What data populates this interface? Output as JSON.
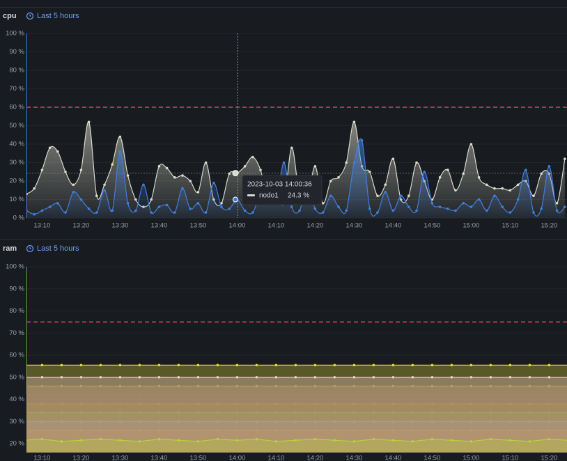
{
  "chart_data": [
    {
      "type": "line",
      "title": "cpu",
      "subtitle": "Last 5 hours",
      "categories": [
        "13:06",
        "13:08",
        "13:10",
        "13:12",
        "13:14",
        "13:16",
        "13:18",
        "13:20",
        "13:22",
        "13:24",
        "13:26",
        "13:28",
        "13:30",
        "13:32",
        "13:34",
        "13:36",
        "13:38",
        "13:40",
        "13:42",
        "13:44",
        "13:46",
        "13:48",
        "13:50",
        "13:52",
        "13:54",
        "13:56",
        "13:58",
        "14:00",
        "14:02",
        "14:04",
        "14:06",
        "14:08",
        "14:10",
        "14:12",
        "14:14",
        "14:16",
        "14:18",
        "14:20",
        "14:22",
        "14:24",
        "14:26",
        "14:28",
        "14:30",
        "14:32",
        "14:34",
        "14:36",
        "14:38",
        "14:40",
        "14:42",
        "14:44",
        "14:46",
        "14:48",
        "14:50",
        "14:52",
        "14:54",
        "14:56",
        "14:58",
        "15:00",
        "15:02",
        "15:04",
        "15:06",
        "15:08",
        "15:10",
        "15:12",
        "15:14",
        "15:16",
        "15:18",
        "15:20",
        "15:22",
        "15:24"
      ],
      "tick_every": 5,
      "tick_first": 2,
      "series": [
        {
          "name": "nodo1",
          "color": "#d9d9cc",
          "values": [
            13,
            16,
            26,
            38,
            36,
            25,
            18,
            26,
            52,
            12,
            18,
            29,
            44,
            23,
            10,
            6,
            10,
            28,
            27,
            22,
            23,
            20,
            14,
            30,
            10,
            8,
            24,
            24.3,
            28,
            33,
            26,
            10,
            14,
            8,
            38,
            12,
            10,
            28,
            8,
            20,
            22,
            30,
            52,
            28,
            25,
            12,
            18,
            32,
            10,
            12,
            30,
            20,
            10,
            22,
            26,
            15,
            24,
            40,
            22,
            18,
            16,
            16,
            15,
            18,
            20,
            12,
            24,
            24,
            8,
            32
          ]
        },
        {
          "color": "#3f7fe0",
          "values": [
            4,
            2,
            4,
            6,
            8,
            3,
            14,
            10,
            5,
            3,
            15,
            4,
            36,
            8,
            4,
            18,
            3,
            6,
            7,
            3,
            16,
            5,
            8,
            3,
            19,
            6,
            5,
            10,
            4,
            3,
            14,
            22,
            8,
            30,
            6,
            4,
            18,
            5,
            3,
            12,
            6,
            4,
            30,
            42,
            5,
            3,
            14,
            4,
            12,
            6,
            4,
            25,
            8,
            6,
            5,
            4,
            8,
            6,
            10,
            4,
            12,
            6,
            3,
            10,
            26,
            3,
            5,
            28,
            4,
            6
          ]
        }
      ],
      "ylim": [
        0,
        100
      ],
      "yticks": [
        {
          "value": 0,
          "label": "0 %"
        },
        {
          "value": 10,
          "label": "10 %"
        },
        {
          "value": 20,
          "label": "20 %"
        },
        {
          "value": 30,
          "label": "30 %"
        },
        {
          "value": 40,
          "label": "40 %"
        },
        {
          "value": 50,
          "label": "50 %"
        },
        {
          "value": 60,
          "label": "60 %"
        },
        {
          "value": 70,
          "label": "70 %"
        },
        {
          "value": 80,
          "label": "80 %"
        },
        {
          "value": 90,
          "label": "90 %"
        },
        {
          "value": 100,
          "label": "100 %"
        }
      ],
      "threshold": 60,
      "threshold_color": "#e0445f",
      "axis_color": "#3f7fe0",
      "tooltip": {
        "time": "2023-10-03 14:00:36",
        "value": 24.3,
        "value_label": "24.3 %"
      }
    },
    {
      "type": "line",
      "title": "ram",
      "subtitle": "Last 5 hours",
      "categories": [
        null,
        "13:10",
        null,
        "13:20",
        null,
        "13:30",
        null,
        "13:40",
        null,
        "13:50",
        null,
        "14:00",
        null,
        "14:10",
        null,
        "14:20",
        null,
        "14:30",
        null,
        "14:40",
        null,
        "14:50",
        null,
        "15:00",
        null,
        "15:10",
        null,
        "15:20",
        null
      ],
      "series": [
        {
          "color": "#8a5a3a",
          "values": [
            46,
            46,
            46,
            46,
            46,
            46,
            46,
            46,
            46,
            46,
            46,
            46,
            46,
            46,
            46,
            46,
            46,
            46,
            46,
            46,
            46,
            46,
            46,
            46,
            46,
            46,
            46,
            46,
            46
          ]
        },
        {
          "color": "#5a2a4a",
          "values": [
            42,
            42,
            42,
            42,
            42,
            42,
            42,
            42,
            42,
            42,
            42,
            42,
            42,
            42,
            42,
            42,
            42,
            42,
            42,
            42,
            42,
            42,
            42,
            42,
            42,
            42,
            42,
            42,
            42
          ]
        },
        {
          "color": "#6a4a1a",
          "values": [
            38,
            38,
            38,
            38,
            38,
            38,
            38,
            38,
            38,
            38,
            38,
            38,
            38,
            38,
            38,
            38,
            38,
            38,
            38,
            38,
            38,
            38,
            38,
            38,
            38,
            38,
            38,
            38,
            38
          ]
        },
        {
          "color": "#4a6a3a",
          "values": [
            34,
            34,
            34,
            34,
            34,
            34,
            34,
            34,
            34,
            34,
            34,
            34,
            34,
            34,
            34,
            34,
            34,
            34,
            34,
            34,
            34,
            34,
            34,
            34,
            34,
            34,
            34,
            34,
            34
          ]
        },
        {
          "color": "#6a5a9a",
          "values": [
            30,
            30,
            30,
            30,
            30,
            30,
            30,
            30,
            30,
            30,
            30,
            30,
            30,
            30,
            30,
            30,
            30,
            30,
            30,
            30,
            30,
            30,
            30,
            30,
            30,
            30,
            30,
            30,
            30
          ]
        },
        {
          "color": "#9a4a3a",
          "values": [
            26,
            26,
            26,
            26,
            26,
            26,
            26,
            26,
            26,
            26,
            26,
            26,
            26,
            26,
            26,
            26,
            26,
            26,
            26,
            26,
            26,
            26,
            26,
            26,
            26,
            26,
            26,
            26,
            26
          ]
        },
        {
          "color": "#e3dd3c",
          "values": [
            55.5,
            55.5,
            55.5,
            55.5,
            55.5,
            55.5,
            55.5,
            55.5,
            55.5,
            55.5,
            55.5,
            55.5,
            55.5,
            55.5,
            55.5,
            55.5,
            55.5,
            55.5,
            55.5,
            55.5,
            55.5,
            55.5,
            55.5,
            55.5,
            55.5,
            55.5,
            55.5,
            55.5,
            55.5
          ]
        },
        {
          "color": "#f4c9cc",
          "values": [
            50,
            50,
            50,
            50,
            50,
            50,
            50,
            50,
            50,
            50,
            50,
            50,
            50,
            50,
            50,
            50,
            50,
            50,
            50,
            50,
            50,
            50,
            50,
            50,
            50,
            50,
            50,
            50,
            50
          ]
        },
        {
          "color": "#b7d13a",
          "values": [
            21.5,
            22,
            21,
            21.5,
            22,
            21.5,
            21,
            22,
            21.5,
            21,
            22,
            21.5,
            22,
            21,
            21.5,
            22,
            21.5,
            21,
            22,
            21.5,
            21,
            22,
            21.5,
            21,
            22,
            21.5,
            21,
            22,
            21.5
          ]
        }
      ],
      "ylim": [
        16,
        100
      ],
      "yticks": [
        {
          "value": 20,
          "label": "20 %"
        },
        {
          "value": 30,
          "label": "30 %"
        },
        {
          "value": 40,
          "label": "40 %"
        },
        {
          "value": 50,
          "label": "50 %"
        },
        {
          "value": 60,
          "label": "60 %"
        },
        {
          "value": 70,
          "label": "70 %"
        },
        {
          "value": 80,
          "label": "80 %"
        },
        {
          "value": 90,
          "label": "90 %"
        },
        {
          "value": 100,
          "label": "100 %"
        }
      ],
      "threshold": 75,
      "threshold_color": "#e0445f",
      "axis_color": "#56a64b"
    }
  ]
}
